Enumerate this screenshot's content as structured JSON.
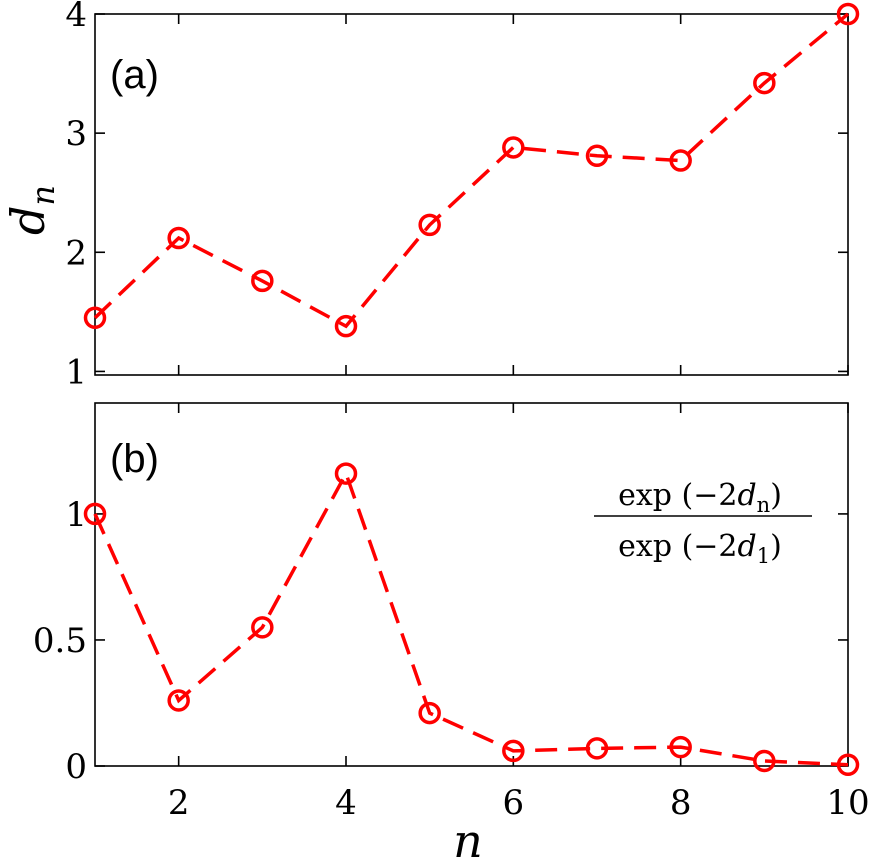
{
  "chart_data": [
    {
      "type": "line",
      "panel_label": "(a)",
      "ylabel": "d",
      "ylabel_subscript": "n",
      "xlabel": "",
      "x": [
        1,
        2,
        3,
        4,
        5,
        6,
        7,
        8,
        9,
        10
      ],
      "series": [
        {
          "name": "d_n",
          "color": "#ff0000",
          "values": [
            1.45,
            2.12,
            1.76,
            1.38,
            2.23,
            2.88,
            2.81,
            2.77,
            3.42,
            4.0
          ]
        }
      ],
      "xlim": [
        1,
        10
      ],
      "ylim": [
        0.97,
        4.0
      ],
      "yticks": [
        1,
        2,
        3,
        4
      ],
      "ytick_labels": [
        "1",
        "2",
        "3",
        "4"
      ],
      "xticks": [
        2,
        4,
        6,
        8,
        10
      ]
    },
    {
      "type": "line",
      "panel_label": "(b)",
      "xlabel": "n",
      "ylabel": "",
      "annotation": {
        "numerator": {
          "prefix": "exp (−2",
          "var": "d",
          "sub": "n",
          "suffix": ")"
        },
        "denominator": {
          "prefix": "exp (−2",
          "var": "d",
          "sub": "1",
          "suffix": ")"
        }
      },
      "x": [
        1,
        2,
        3,
        4,
        5,
        6,
        7,
        8,
        9,
        10
      ],
      "series": [
        {
          "name": "exp(-2d_n)/exp(-2d_1)",
          "color": "#ff0000",
          "values": [
            1.0,
            0.26,
            0.55,
            1.16,
            0.21,
            0.06,
            0.07,
            0.075,
            0.02,
            0.005
          ]
        }
      ],
      "xlim": [
        1,
        10
      ],
      "ylim": [
        0,
        1.44
      ],
      "yticks": [
        0,
        0.5,
        1
      ],
      "ytick_labels": [
        "0",
        "0.5",
        "1"
      ],
      "xticks": [
        2,
        4,
        6,
        8,
        10
      ],
      "xtick_labels": [
        "2",
        "4",
        "6",
        "8",
        "10"
      ]
    }
  ]
}
